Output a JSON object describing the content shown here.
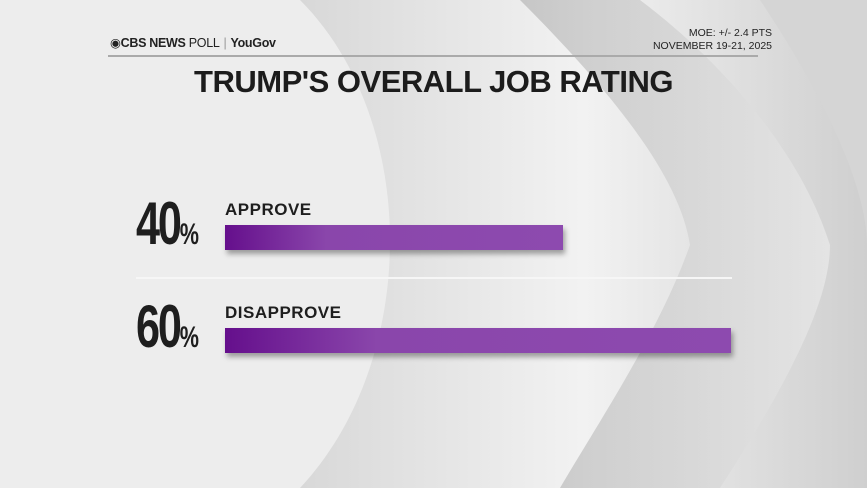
{
  "header": {
    "brand": "CBS NEWS",
    "poll": "POLL",
    "partner": "YouGov",
    "moe": "MOE: +/- 2.4 PTS",
    "dates": "NOVEMBER 19-21, 2025"
  },
  "chart_data": {
    "type": "bar",
    "orientation": "horizontal",
    "title": "TRUMP'S OVERALL JOB RATING",
    "categories": [
      "APPROVE",
      "DISAPPROVE"
    ],
    "values": [
      40,
      60
    ],
    "value_labels": [
      "40",
      "60"
    ],
    "unit": "%",
    "bar_color": "#8d4aaf",
    "grid": false
  }
}
